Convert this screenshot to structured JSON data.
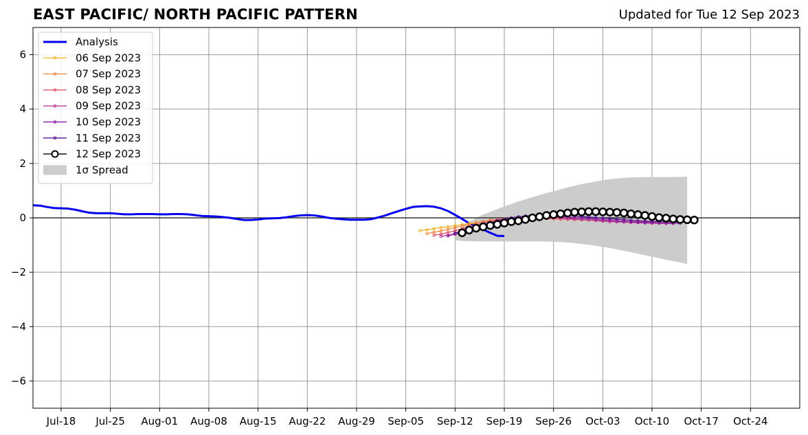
{
  "header": {
    "title": "EAST PACIFIC/ NORTH PACIFIC PATTERN",
    "updated": "Updated for Tue 12 Sep 2023"
  },
  "colors": {
    "analysis": "#0000ee",
    "spread": "#cccccc",
    "grid": "#999999",
    "forecast": [
      "#f5b532",
      "#ee8a45",
      "#e0536a",
      "#c03c9a",
      "#8f22a6",
      "#5a1491",
      "#000000"
    ]
  },
  "chart_data": {
    "type": "line",
    "title": "EAST PACIFIC/ NORTH PACIFIC PATTERN",
    "xlabel": "",
    "ylabel": "",
    "x_range": [
      "2023-07-14",
      "2023-10-31"
    ],
    "ylim": [
      -7,
      7
    ],
    "x_tick_labels": [
      "Jul-18",
      "Jul-25",
      "Aug-01",
      "Aug-08",
      "Aug-15",
      "Aug-22",
      "Aug-29",
      "Sep-05",
      "Sep-12",
      "Sep-19",
      "Sep-26",
      "Oct-03",
      "Oct-10",
      "Oct-17",
      "Oct-24"
    ],
    "x_tick_dates": [
      "2023-07-18",
      "2023-07-25",
      "2023-08-01",
      "2023-08-08",
      "2023-08-15",
      "2023-08-22",
      "2023-08-29",
      "2023-09-05",
      "2023-09-12",
      "2023-09-19",
      "2023-09-26",
      "2023-10-03",
      "2023-10-10",
      "2023-10-17",
      "2023-10-24"
    ],
    "y_ticks": [
      -6,
      -4,
      -2,
      0,
      2,
      4,
      6
    ],
    "y_tick_labels": [
      "−6",
      "−4",
      "−2",
      "0",
      "2",
      "4",
      "6"
    ],
    "grid": true,
    "legend_position": "top-left",
    "analysis": {
      "name": "Analysis",
      "start": "2023-07-14",
      "values": [
        0.46,
        0.45,
        0.4,
        0.36,
        0.35,
        0.34,
        0.3,
        0.24,
        0.19,
        0.17,
        0.17,
        0.17,
        0.15,
        0.13,
        0.13,
        0.14,
        0.14,
        0.14,
        0.13,
        0.13,
        0.14,
        0.14,
        0.13,
        0.1,
        0.07,
        0.06,
        0.05,
        0.03,
        0.0,
        -0.04,
        -0.08,
        -0.08,
        -0.06,
        -0.03,
        -0.02,
        -0.01,
        0.02,
        0.06,
        0.09,
        0.1,
        0.09,
        0.05,
        0.0,
        -0.03,
        -0.05,
        -0.07,
        -0.07,
        -0.07,
        -0.05,
        0.01,
        0.08,
        0.17,
        0.25,
        0.33,
        0.4,
        0.42,
        0.43,
        0.41,
        0.35,
        0.25,
        0.11,
        -0.04,
        -0.2,
        -0.32,
        -0.43,
        -0.55,
        -0.66,
        -0.67
      ]
    },
    "spread": {
      "name": "1σ Spread",
      "start": "2023-09-12",
      "upper": [
        -0.6,
        -0.35,
        -0.15,
        0.0,
        0.12,
        0.22,
        0.32,
        0.42,
        0.51,
        0.6,
        0.68,
        0.76,
        0.84,
        0.91,
        0.98,
        1.05,
        1.12,
        1.18,
        1.24,
        1.29,
        1.34,
        1.38,
        1.42,
        1.45,
        1.47,
        1.48,
        1.49,
        1.5,
        1.5,
        1.5,
        1.5,
        1.5,
        1.51,
        1.51
      ],
      "lower": [
        -0.82,
        -0.85,
        -0.86,
        -0.87,
        -0.87,
        -0.87,
        -0.87,
        -0.87,
        -0.87,
        -0.87,
        -0.87,
        -0.87,
        -0.87,
        -0.87,
        -0.88,
        -0.89,
        -0.91,
        -0.93,
        -0.96,
        -0.99,
        -1.03,
        -1.07,
        -1.11,
        -1.16,
        -1.21,
        -1.26,
        -1.32,
        -1.37,
        -1.43,
        -1.48,
        -1.54,
        -1.59,
        -1.64,
        -1.7
      ]
    },
    "series": [
      {
        "name": "06 Sep 2023",
        "start": "2023-09-07",
        "values": [
          -0.47,
          -0.44,
          -0.4,
          -0.36,
          -0.33,
          -0.29,
          -0.25,
          -0.21,
          -0.17,
          -0.13,
          -0.1,
          -0.07,
          -0.05,
          -0.03,
          -0.02,
          -0.01,
          -0.01,
          -0.01,
          -0.02,
          -0.03,
          -0.04,
          -0.05,
          -0.06,
          -0.07,
          -0.08,
          -0.09,
          -0.1,
          -0.11,
          -0.12,
          -0.13,
          -0.14,
          -0.15,
          -0.16,
          -0.17
        ]
      },
      {
        "name": "07 Sep 2023",
        "start": "2023-09-08",
        "values": [
          -0.58,
          -0.53,
          -0.48,
          -0.42,
          -0.36,
          -0.3,
          -0.24,
          -0.18,
          -0.13,
          -0.09,
          -0.06,
          -0.04,
          -0.02,
          -0.01,
          0.0,
          0.0,
          -0.01,
          -0.02,
          -0.03,
          -0.04,
          -0.05,
          -0.06,
          -0.07,
          -0.08,
          -0.09,
          -0.1,
          -0.11,
          -0.12,
          -0.13,
          -0.14,
          -0.15,
          -0.16,
          -0.17,
          -0.18
        ]
      },
      {
        "name": "08 Sep 2023",
        "start": "2023-09-09",
        "values": [
          -0.64,
          -0.6,
          -0.54,
          -0.47,
          -0.4,
          -0.32,
          -0.25,
          -0.18,
          -0.12,
          -0.07,
          -0.04,
          -0.02,
          -0.01,
          0.0,
          0.0,
          -0.01,
          -0.02,
          -0.03,
          -0.04,
          -0.05,
          -0.06,
          -0.07,
          -0.08,
          -0.09,
          -0.1,
          -0.11,
          -0.12,
          -0.13,
          -0.14,
          -0.15,
          -0.16,
          -0.17,
          -0.18,
          -0.19
        ]
      },
      {
        "name": "09 Sep 2023",
        "start": "2023-09-10",
        "values": [
          -0.68,
          -0.64,
          -0.58,
          -0.51,
          -0.43,
          -0.35,
          -0.27,
          -0.2,
          -0.14,
          -0.09,
          -0.05,
          -0.02,
          0.0,
          0.01,
          0.02,
          0.02,
          0.01,
          0.0,
          -0.02,
          -0.04,
          -0.06,
          -0.08,
          -0.1,
          -0.12,
          -0.14,
          -0.15,
          -0.16,
          -0.17,
          -0.18,
          -0.19,
          -0.2,
          -0.2,
          -0.21,
          -0.21
        ]
      },
      {
        "name": "10 Sep 2023",
        "start": "2023-09-11",
        "values": [
          -0.66,
          -0.6,
          -0.53,
          -0.46,
          -0.38,
          -0.3,
          -0.22,
          -0.15,
          -0.09,
          -0.04,
          0.0,
          0.03,
          0.05,
          0.06,
          0.06,
          0.06,
          0.05,
          0.03,
          0.01,
          -0.01,
          -0.03,
          -0.05,
          -0.07,
          -0.09,
          -0.11,
          -0.13,
          -0.15,
          -0.16,
          -0.17,
          -0.18,
          -0.19,
          -0.19,
          -0.2,
          -0.2
        ]
      },
      {
        "name": "11 Sep 2023",
        "start": "2023-09-12",
        "values": [
          -0.56,
          -0.49,
          -0.41,
          -0.33,
          -0.25,
          -0.18,
          -0.11,
          -0.05,
          0.0,
          0.04,
          0.07,
          0.09,
          0.1,
          0.11,
          0.11,
          0.1,
          0.09,
          0.07,
          0.05,
          0.03,
          0.01,
          -0.01,
          -0.03,
          -0.05,
          -0.07,
          -0.09,
          -0.11,
          -0.12,
          -0.13,
          -0.14,
          -0.15,
          -0.15,
          -0.16,
          -0.16
        ]
      },
      {
        "name": "12 Sep 2023",
        "start": "2023-09-13",
        "values": [
          -0.55,
          -0.45,
          -0.38,
          -0.33,
          -0.28,
          -0.24,
          -0.19,
          -0.14,
          -0.11,
          -0.06,
          0.0,
          0.04,
          0.09,
          0.12,
          0.15,
          0.18,
          0.21,
          0.22,
          0.23,
          0.23,
          0.22,
          0.21,
          0.2,
          0.18,
          0.15,
          0.12,
          0.09,
          0.05,
          0.01,
          -0.01,
          -0.04,
          -0.06,
          -0.07,
          -0.08
        ]
      }
    ],
    "legend": [
      "Analysis",
      "06 Sep 2023",
      "07 Sep 2023",
      "08 Sep 2023",
      "09 Sep 2023",
      "10 Sep 2023",
      "11 Sep 2023",
      "12 Sep 2023",
      "1σ Spread"
    ]
  }
}
